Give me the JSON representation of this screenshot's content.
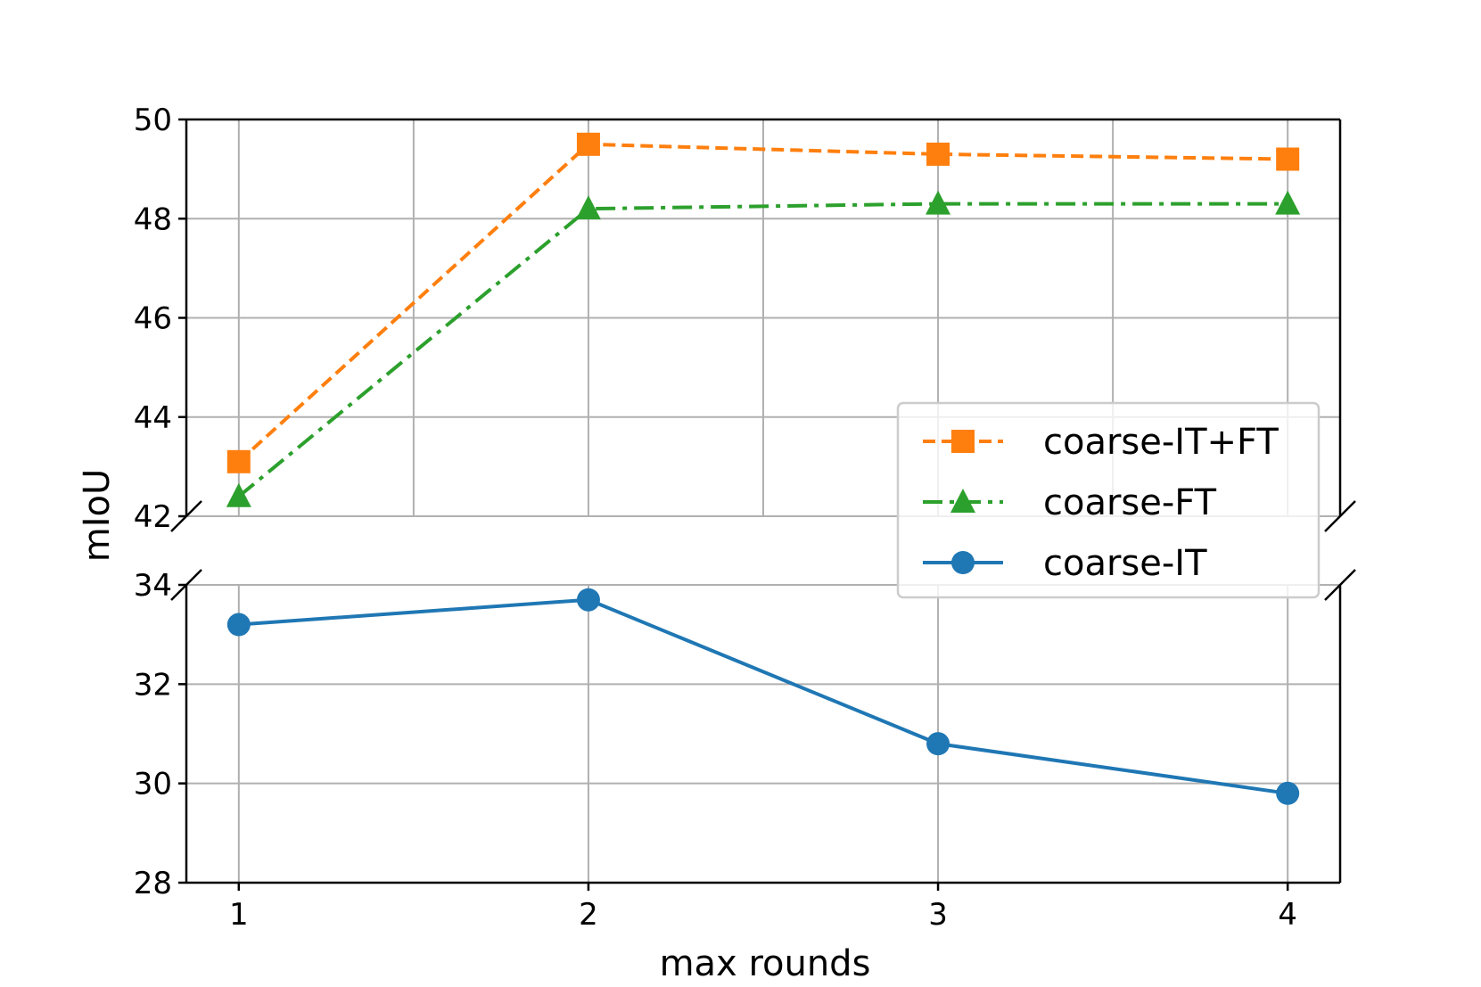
{
  "chart_data": {
    "type": "line",
    "broken_axis": true,
    "xlabel": "max rounds",
    "ylabel": "mIoU",
    "x": [
      1,
      2,
      3,
      4
    ],
    "xticks": [
      "1",
      "2",
      "3",
      "4"
    ],
    "upper_panel": {
      "ylim": [
        42,
        50
      ],
      "yticks": [
        "42",
        "44",
        "46",
        "48",
        "50"
      ]
    },
    "lower_panel": {
      "ylim": [
        28,
        34
      ],
      "yticks": [
        "28",
        "30",
        "32",
        "34"
      ]
    },
    "grid": true,
    "legend_position": "right",
    "series": [
      {
        "name": "coarse-IT+FT",
        "values": [
          43.1,
          49.5,
          49.3,
          49.2
        ],
        "color": "#ff7f0e",
        "marker": "square",
        "linestyle": "dashed",
        "panel": "upper"
      },
      {
        "name": "coarse-FT",
        "values": [
          42.4,
          48.2,
          48.3,
          48.3
        ],
        "color": "#2ca02c",
        "marker": "triangle",
        "linestyle": "dashdot",
        "panel": "upper"
      },
      {
        "name": "coarse-IT",
        "values": [
          33.2,
          33.7,
          30.8,
          29.8
        ],
        "color": "#1f77b4",
        "marker": "circle",
        "linestyle": "solid",
        "panel": "lower"
      }
    ]
  }
}
